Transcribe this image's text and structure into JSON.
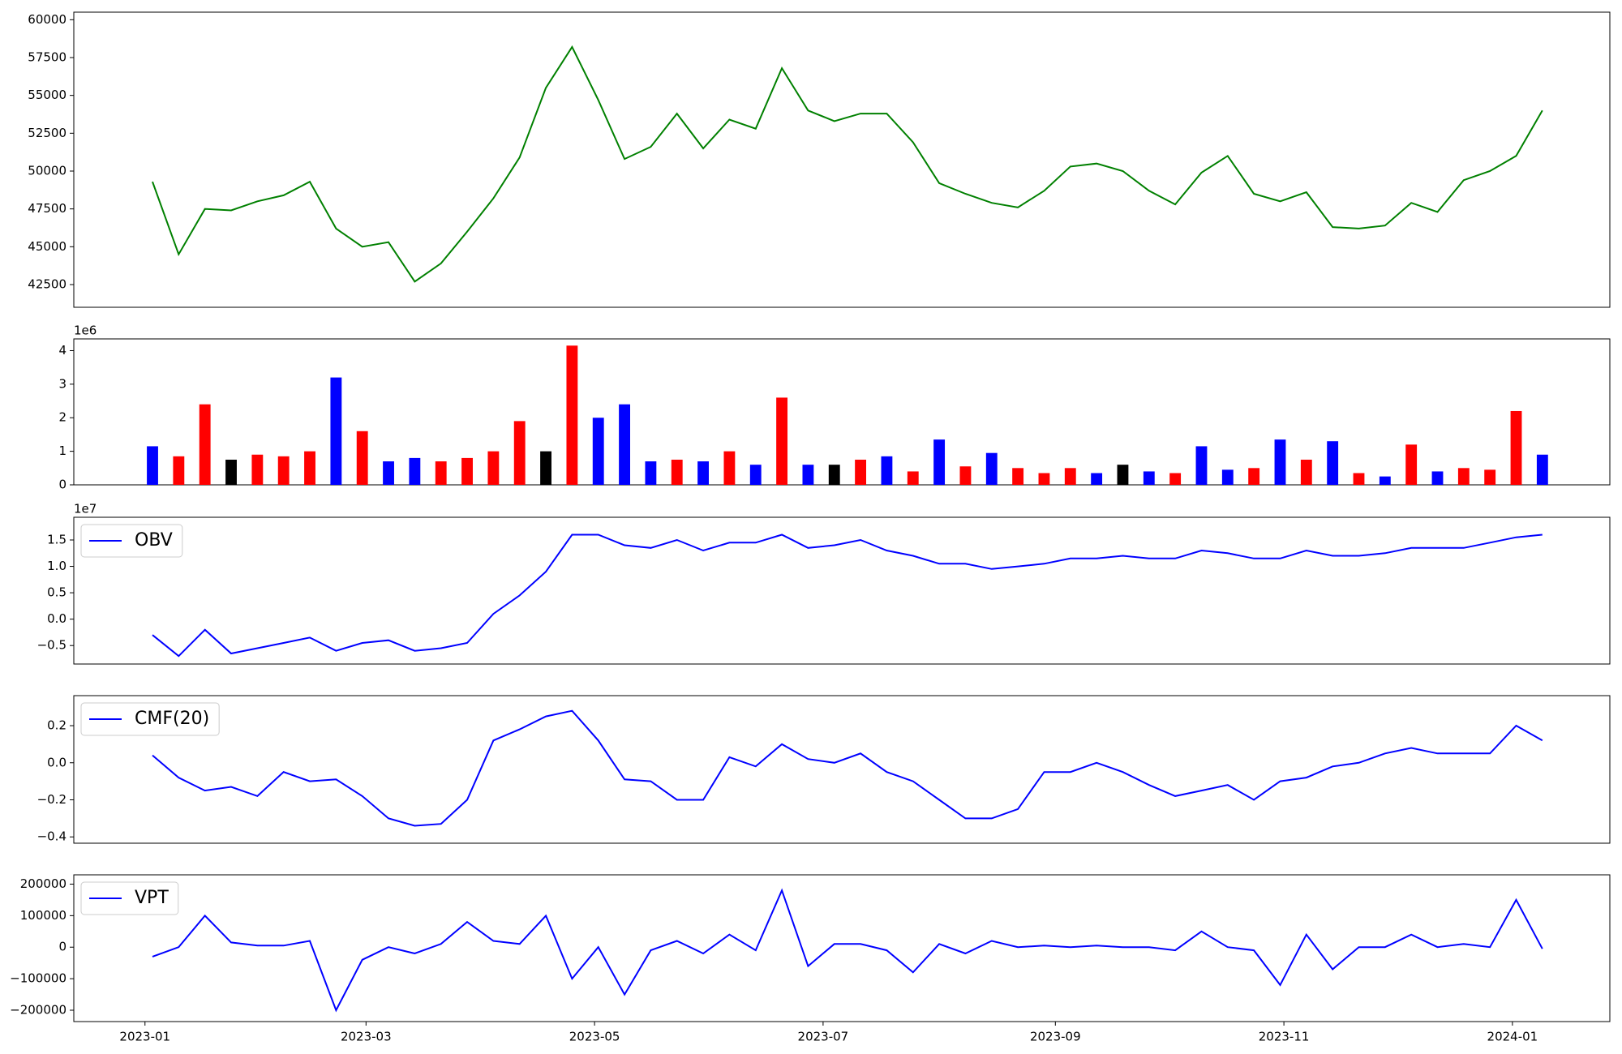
{
  "chart_data": [
    {
      "type": "line",
      "color": "#008000",
      "x": [
        "2023-01-03",
        "2023-01-10",
        "2023-01-17",
        "2023-01-24",
        "2023-01-31",
        "2023-02-07",
        "2023-02-14",
        "2023-02-21",
        "2023-02-28",
        "2023-03-07",
        "2023-03-14",
        "2023-03-21",
        "2023-03-28",
        "2023-04-04",
        "2023-04-11",
        "2023-04-18",
        "2023-04-25",
        "2023-05-02",
        "2023-05-09",
        "2023-05-16",
        "2023-05-23",
        "2023-05-30",
        "2023-06-06",
        "2023-06-13",
        "2023-06-20",
        "2023-06-27",
        "2023-07-04",
        "2023-07-11",
        "2023-07-18",
        "2023-07-25",
        "2023-08-01",
        "2023-08-08",
        "2023-08-15",
        "2023-08-22",
        "2023-08-29",
        "2023-09-05",
        "2023-09-12",
        "2023-09-19",
        "2023-09-26",
        "2023-10-03",
        "2023-10-10",
        "2023-10-17",
        "2023-10-24",
        "2023-10-31",
        "2023-11-07",
        "2023-11-14",
        "2023-11-21",
        "2023-11-28",
        "2023-12-05",
        "2023-12-12",
        "2023-12-19",
        "2023-12-26",
        "2024-01-02",
        "2024-01-09"
      ],
      "values": [
        49300,
        44500,
        47500,
        47400,
        48000,
        48400,
        49300,
        46200,
        45000,
        45300,
        42700,
        43900,
        46000,
        48200,
        50900,
        55500,
        58200,
        54700,
        50800,
        51600,
        53800,
        51500,
        53400,
        52800,
        56800,
        54000,
        53300,
        53800,
        53800,
        51900,
        49200,
        48500,
        47900,
        47600,
        48700,
        50300,
        50500,
        50000,
        48700,
        47800,
        49900,
        51000,
        48500,
        48000,
        48600,
        46300,
        46200,
        46400,
        47900,
        47300,
        49400,
        50000,
        51000,
        54000
      ],
      "xlim": [
        "2022-12-13",
        "2024-01-27"
      ],
      "ylim": [
        41000,
        60500
      ],
      "yticks": [
        42500,
        45000,
        47500,
        50000,
        52500,
        55000,
        57500,
        60000
      ]
    },
    {
      "type": "bar",
      "x": [
        "2023-01-03",
        "2023-01-10",
        "2023-01-17",
        "2023-01-24",
        "2023-01-31",
        "2023-02-07",
        "2023-02-14",
        "2023-02-21",
        "2023-02-28",
        "2023-03-07",
        "2023-03-14",
        "2023-03-21",
        "2023-03-28",
        "2023-04-04",
        "2023-04-11",
        "2023-04-18",
        "2023-04-25",
        "2023-05-02",
        "2023-05-09",
        "2023-05-16",
        "2023-05-23",
        "2023-05-30",
        "2023-06-06",
        "2023-06-13",
        "2023-06-20",
        "2023-06-27",
        "2023-07-04",
        "2023-07-11",
        "2023-07-18",
        "2023-07-25",
        "2023-08-01",
        "2023-08-08",
        "2023-08-15",
        "2023-08-22",
        "2023-08-29",
        "2023-09-05",
        "2023-09-12",
        "2023-09-19",
        "2023-09-26",
        "2023-10-03",
        "2023-10-10",
        "2023-10-17",
        "2023-10-24",
        "2023-10-31",
        "2023-11-07",
        "2023-11-14",
        "2023-11-21",
        "2023-11-28",
        "2023-12-05",
        "2023-12-12",
        "2023-12-19",
        "2023-12-26",
        "2024-01-02",
        "2024-01-09"
      ],
      "values": [
        1150000,
        850000,
        2400000,
        750000,
        900000,
        850000,
        1000000,
        3200000,
        1600000,
        700000,
        800000,
        700000,
        800000,
        1000000,
        1900000,
        1000000,
        4150000,
        2000000,
        2400000,
        700000,
        750000,
        700000,
        1000000,
        600000,
        2600000,
        600000,
        600000,
        750000,
        850000,
        400000,
        1350000,
        550000,
        950000,
        500000,
        350000,
        500000,
        350000,
        600000,
        400000,
        350000,
        1150000,
        450000,
        500000,
        1350000,
        750000,
        1300000,
        350000,
        250000,
        1200000,
        400000,
        500000,
        450000,
        2200000,
        900000
      ],
      "colors": [
        "blue",
        "red",
        "red",
        "black",
        "red",
        "red",
        "red",
        "blue",
        "red",
        "blue",
        "blue",
        "red",
        "red",
        "red",
        "red",
        "black",
        "red",
        "blue",
        "blue",
        "blue",
        "red",
        "blue",
        "red",
        "blue",
        "red",
        "blue",
        "black",
        "red",
        "blue",
        "red",
        "blue",
        "red",
        "blue",
        "red",
        "red",
        "red",
        "blue",
        "black",
        "blue",
        "red",
        "blue",
        "blue",
        "red",
        "blue",
        "red",
        "blue",
        "red",
        "blue",
        "red",
        "blue",
        "red",
        "red",
        "red",
        "blue"
      ],
      "xlim": [
        "2022-12-13",
        "2024-01-27"
      ],
      "ylim": [
        0,
        4350000
      ],
      "y_offset_label": "1e6",
      "yticks": [
        {
          "value": 0,
          "label": "0"
        },
        {
          "value": 1000000,
          "label": "1"
        },
        {
          "value": 2000000,
          "label": "2"
        },
        {
          "value": 3000000,
          "label": "3"
        },
        {
          "value": 4000000,
          "label": "4"
        }
      ]
    },
    {
      "type": "line",
      "legend": "upper left",
      "x": [
        "2023-01-03",
        "2023-01-10",
        "2023-01-17",
        "2023-01-24",
        "2023-01-31",
        "2023-02-07",
        "2023-02-14",
        "2023-02-21",
        "2023-02-28",
        "2023-03-07",
        "2023-03-14",
        "2023-03-21",
        "2023-03-28",
        "2023-04-04",
        "2023-04-11",
        "2023-04-18",
        "2023-04-25",
        "2023-05-02",
        "2023-05-09",
        "2023-05-16",
        "2023-05-23",
        "2023-05-30",
        "2023-06-06",
        "2023-06-13",
        "2023-06-20",
        "2023-06-27",
        "2023-07-04",
        "2023-07-11",
        "2023-07-18",
        "2023-07-25",
        "2023-08-01",
        "2023-08-08",
        "2023-08-15",
        "2023-08-22",
        "2023-08-29",
        "2023-09-05",
        "2023-09-12",
        "2023-09-19",
        "2023-09-26",
        "2023-10-03",
        "2023-10-10",
        "2023-10-17",
        "2023-10-24",
        "2023-10-31",
        "2023-11-07",
        "2023-11-14",
        "2023-11-21",
        "2023-11-28",
        "2023-12-05",
        "2023-12-12",
        "2023-12-19",
        "2023-12-26",
        "2024-01-02",
        "2024-01-09"
      ],
      "series": [
        {
          "name": "OBV",
          "color": "blue",
          "values": [
            -3000000,
            -7000000,
            -2000000,
            -6500000,
            -5500000,
            -4500000,
            -3500000,
            -6000000,
            -4500000,
            -4000000,
            -6000000,
            -5500000,
            -4500000,
            1000000,
            4500000,
            9000000,
            16000000,
            16000000,
            14000000,
            13500000,
            15000000,
            13000000,
            14500000,
            14500000,
            16000000,
            13500000,
            14000000,
            15000000,
            13000000,
            12000000,
            10500000,
            10500000,
            9500000,
            10000000,
            10500000,
            11500000,
            11500000,
            12000000,
            11500000,
            11500000,
            13000000,
            12500000,
            11500000,
            11500000,
            13000000,
            12000000,
            12000000,
            12500000,
            13500000,
            13500000,
            13500000,
            14500000,
            15500000,
            16000000
          ]
        }
      ],
      "xlim": [
        "2022-12-13",
        "2024-01-27"
      ],
      "ylim": [
        -8500000,
        19300000
      ],
      "y_offset_label": "1e7",
      "yticks": [
        {
          "value": -5000000,
          "label": "−0.5"
        },
        {
          "value": 0,
          "label": "0.0"
        },
        {
          "value": 5000000,
          "label": "0.5"
        },
        {
          "value": 10000000,
          "label": "1.0"
        },
        {
          "value": 15000000,
          "label": "1.5"
        }
      ]
    },
    {
      "type": "line",
      "legend": "upper left",
      "x": [
        "2023-01-03",
        "2023-01-10",
        "2023-01-17",
        "2023-01-24",
        "2023-01-31",
        "2023-02-07",
        "2023-02-14",
        "2023-02-21",
        "2023-02-28",
        "2023-03-07",
        "2023-03-14",
        "2023-03-21",
        "2023-03-28",
        "2023-04-04",
        "2023-04-11",
        "2023-04-18",
        "2023-04-25",
        "2023-05-02",
        "2023-05-09",
        "2023-05-16",
        "2023-05-23",
        "2023-05-30",
        "2023-06-06",
        "2023-06-13",
        "2023-06-20",
        "2023-06-27",
        "2023-07-04",
        "2023-07-11",
        "2023-07-18",
        "2023-07-25",
        "2023-08-01",
        "2023-08-08",
        "2023-08-15",
        "2023-08-22",
        "2023-08-29",
        "2023-09-05",
        "2023-09-12",
        "2023-09-19",
        "2023-09-26",
        "2023-10-03",
        "2023-10-10",
        "2023-10-17",
        "2023-10-24",
        "2023-10-31",
        "2023-11-07",
        "2023-11-14",
        "2023-11-21",
        "2023-11-28",
        "2023-12-05",
        "2023-12-12",
        "2023-12-19",
        "2023-12-26",
        "2024-01-02",
        "2024-01-09"
      ],
      "series": [
        {
          "name": "CMF(20)",
          "color": "blue",
          "values": [
            0.04,
            -0.08,
            -0.15,
            -0.13,
            -0.18,
            -0.05,
            -0.1,
            -0.09,
            -0.18,
            -0.3,
            -0.34,
            -0.33,
            -0.2,
            0.12,
            0.18,
            0.25,
            0.28,
            0.12,
            -0.09,
            -0.1,
            -0.2,
            -0.2,
            0.03,
            -0.02,
            0.1,
            0.02,
            0.0,
            0.05,
            -0.05,
            -0.1,
            -0.2,
            -0.3,
            -0.3,
            -0.25,
            -0.05,
            -0.05,
            0.0,
            -0.05,
            -0.12,
            -0.18,
            -0.15,
            -0.12,
            -0.2,
            -0.1,
            -0.08,
            -0.02,
            0.0,
            0.05,
            0.08,
            0.05,
            0.05,
            0.05,
            0.2,
            0.12
          ]
        }
      ],
      "xlim": [
        "2022-12-13",
        "2024-01-27"
      ],
      "ylim": [
        -0.434,
        0.362
      ],
      "yticks": [
        {
          "value": -0.4,
          "label": "−0.4"
        },
        {
          "value": -0.2,
          "label": "−0.2"
        },
        {
          "value": 0,
          "label": "0.0"
        },
        0.2
      ]
    },
    {
      "type": "line",
      "legend": "upper left",
      "x": [
        "2023-01-03",
        "2023-01-10",
        "2023-01-17",
        "2023-01-24",
        "2023-01-31",
        "2023-02-07",
        "2023-02-14",
        "2023-02-21",
        "2023-02-28",
        "2023-03-07",
        "2023-03-14",
        "2023-03-21",
        "2023-03-28",
        "2023-04-04",
        "2023-04-11",
        "2023-04-18",
        "2023-04-25",
        "2023-05-02",
        "2023-05-09",
        "2023-05-16",
        "2023-05-23",
        "2023-05-30",
        "2023-06-06",
        "2023-06-13",
        "2023-06-20",
        "2023-06-27",
        "2023-07-04",
        "2023-07-11",
        "2023-07-18",
        "2023-07-25",
        "2023-08-01",
        "2023-08-08",
        "2023-08-15",
        "2023-08-22",
        "2023-08-29",
        "2023-09-05",
        "2023-09-12",
        "2023-09-19",
        "2023-09-26",
        "2023-10-03",
        "2023-10-10",
        "2023-10-17",
        "2023-10-24",
        "2023-10-31",
        "2023-11-07",
        "2023-11-14",
        "2023-11-21",
        "2023-11-28",
        "2023-12-05",
        "2023-12-12",
        "2023-12-19",
        "2023-12-26",
        "2024-01-02",
        "2024-01-09"
      ],
      "series": [
        {
          "name": "VPT",
          "color": "blue",
          "values": [
            -30000,
            0,
            100000,
            15000,
            5000,
            5000,
            20000,
            -200000,
            -40000,
            0,
            -20000,
            10000,
            80000,
            20000,
            10000,
            100000,
            -100000,
            0,
            -150000,
            -10000,
            20000,
            -20000,
            40000,
            -10000,
            180000,
            -60000,
            10000,
            10000,
            -10000,
            -80000,
            10000,
            -20000,
            20000,
            0,
            5000,
            0,
            5000,
            0,
            0,
            -10000,
            50000,
            0,
            -10000,
            -120000,
            40000,
            -70000,
            0,
            0,
            40000,
            0,
            10000,
            0,
            150000,
            -5000
          ]
        }
      ],
      "xlim": [
        "2022-12-13",
        "2024-01-27"
      ],
      "ylim": [
        -236000,
        229500
      ],
      "yticks": [
        {
          "value": -200000,
          "label": "−200000"
        },
        {
          "value": -100000,
          "label": "−100000"
        },
        0,
        100000,
        200000
      ],
      "xticks": [
        {
          "value": "2023-01-01",
          "label": "2023-01"
        },
        {
          "value": "2023-03-01",
          "label": "2023-03"
        },
        {
          "value": "2023-05-01",
          "label": "2023-05"
        },
        {
          "value": "2023-07-01",
          "label": "2023-07"
        },
        {
          "value": "2023-09-01",
          "label": "2023-09"
        },
        {
          "value": "2023-11-01",
          "label": "2023-11"
        },
        {
          "value": "2024-01-01",
          "label": "2024-01"
        }
      ]
    }
  ]
}
